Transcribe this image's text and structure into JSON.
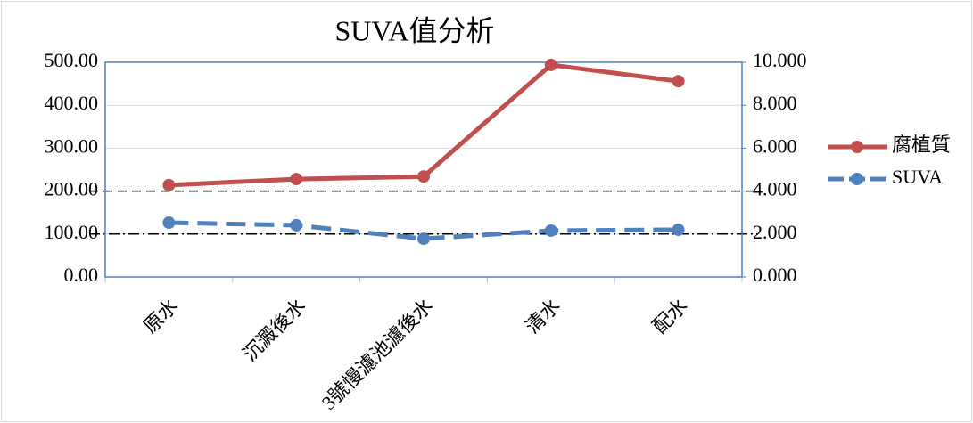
{
  "chart_data": {
    "type": "line",
    "title": "SUVA值分析",
    "categories": [
      "原水",
      "沉澱後水",
      "3號慢濾池濾後水",
      "清水",
      "配水"
    ],
    "series": [
      {
        "name": "腐植質",
        "color": "#c0504d",
        "dash": "solid",
        "values": [
          214,
          228,
          234,
          494,
          456
        ]
      },
      {
        "name": "SUVA",
        "color": "#4f81bd",
        "dash": "dashed",
        "axis": "y2",
        "values": [
          2.53,
          2.41,
          1.78,
          2.16,
          2.2
        ]
      }
    ],
    "ylim": [
      0,
      500
    ],
    "yticks": [
      {
        "value": 0,
        "label": "0.00"
      },
      {
        "value": 100,
        "label": "100.00"
      },
      {
        "value": 200,
        "label": "200.00"
      },
      {
        "value": 300,
        "label": "300.00"
      },
      {
        "value": 400,
        "label": "400.00"
      },
      {
        "value": 500,
        "label": "500.00"
      }
    ],
    "y2lim": [
      0,
      10
    ],
    "y2ticks": [
      {
        "value": 0,
        "label": "0.000"
      },
      {
        "value": 2,
        "label": "2.000"
      },
      {
        "value": 4,
        "label": "4.000"
      },
      {
        "value": 6,
        "label": "6.000"
      },
      {
        "value": 8,
        "label": "8.000"
      },
      {
        "value": 10,
        "label": "10.000"
      }
    ],
    "grid": true,
    "reference_lines": [
      {
        "value": 200,
        "style": "dashed"
      },
      {
        "value": 100,
        "style": "dashdot"
      }
    ],
    "legend": "right"
  }
}
